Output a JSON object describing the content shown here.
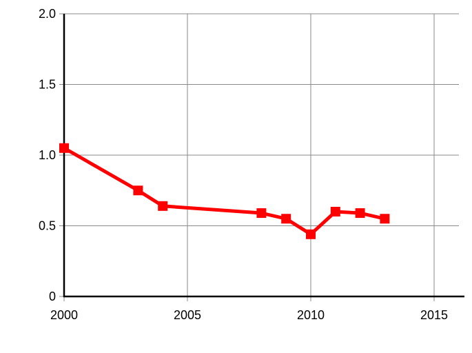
{
  "chart_data": {
    "type": "line",
    "title": "",
    "xlabel": "",
    "ylabel": "",
    "xlim": [
      2000,
      2016
    ],
    "ylim": [
      0,
      2.0
    ],
    "grid": true,
    "x_ticks": [
      "2000",
      "2005",
      "2010",
      "2015"
    ],
    "y_ticks": [
      "0",
      "0.5",
      "1.0",
      "1.5",
      "2.0"
    ],
    "series": [
      {
        "color": "#ff0000",
        "marker": "square",
        "x": [
          2000,
          2003,
          2004,
          2008,
          2009,
          2010,
          2011,
          2012,
          2013
        ],
        "y": [
          1.05,
          0.75,
          0.64,
          0.59,
          0.55,
          0.44,
          0.6,
          0.59,
          0.55
        ]
      }
    ]
  }
}
